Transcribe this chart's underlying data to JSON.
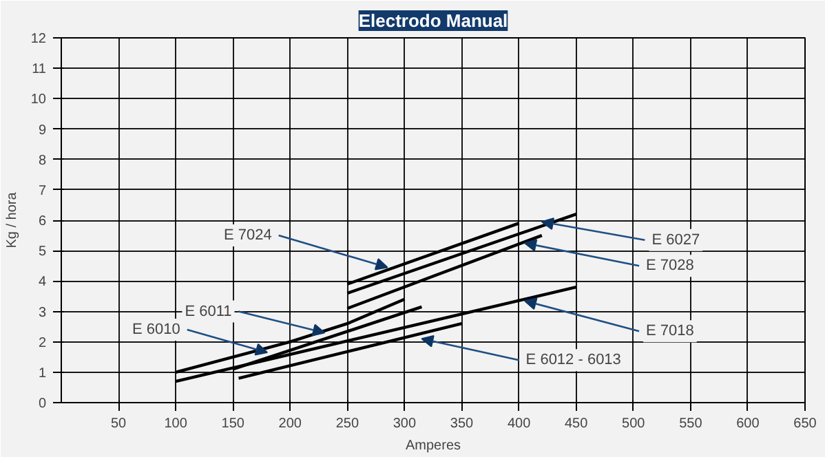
{
  "chart_data": {
    "type": "line",
    "title": "Electrodo Manual",
    "xlabel": "Amperes",
    "ylabel": "Kg / hora",
    "xlim": [
      0,
      650
    ],
    "ylim": [
      0,
      12
    ],
    "xticks": [
      50,
      100,
      150,
      200,
      250,
      300,
      350,
      400,
      450,
      500,
      550,
      600,
      650
    ],
    "yticks": [
      0,
      1,
      2,
      3,
      4,
      5,
      6,
      7,
      8,
      9,
      10,
      11,
      12
    ],
    "grid": true,
    "marker": "none",
    "line_style": "solid",
    "series": [
      {
        "color": "#000000",
        "x": [
          100,
          200,
          250,
          300
        ],
        "values": [
          1.0,
          2.0,
          2.6,
          3.4
        ]
      },
      {
        "color": "#000000",
        "x": [
          150,
          315
        ],
        "values": [
          1.1,
          3.15
        ]
      },
      {
        "color": "#000000",
        "x": [
          100,
          450
        ],
        "values": [
          0.7,
          3.8
        ]
      },
      {
        "color": "#000000",
        "x": [
          155,
          350
        ],
        "values": [
          0.8,
          2.6
        ]
      },
      {
        "color": "#000000",
        "x": [
          250,
          400
        ],
        "values": [
          3.9,
          5.9
        ]
      },
      {
        "color": "#000000",
        "x": [
          250,
          450
        ],
        "values": [
          3.6,
          6.2
        ]
      },
      {
        "color": "#000000",
        "x": [
          250,
          420
        ],
        "values": [
          3.1,
          5.5
        ]
      }
    ],
    "annotations": [
      {
        "text": "E 7024",
        "x": 285,
        "y": 4.45
      },
      {
        "text": "E 6011",
        "x": 230,
        "y": 2.3
      },
      {
        "text": "E 6010",
        "x": 180,
        "y": 1.65
      },
      {
        "text": "E 6012 - 6013",
        "x": 315,
        "y": 2.1
      },
      {
        "text": "E 6027",
        "x": 420,
        "y": 5.95
      },
      {
        "text": "E 7028",
        "x": 405,
        "y": 5.25
      },
      {
        "text": "E 7018",
        "x": 405,
        "y": 3.35
      }
    ]
  }
}
